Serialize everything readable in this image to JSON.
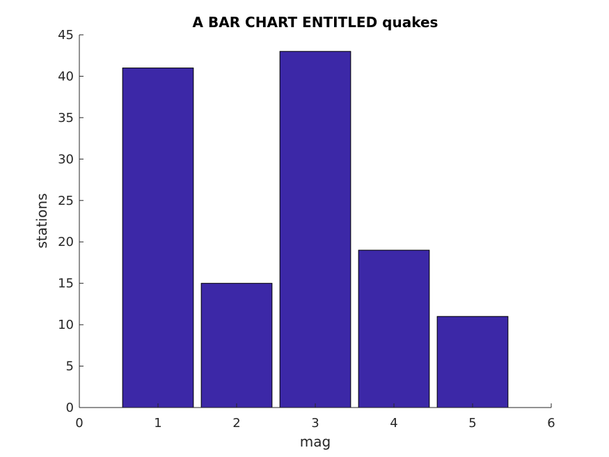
{
  "chart_data": {
    "type": "bar",
    "title": "A BAR CHART ENTITLED quakes",
    "xlabel": "mag",
    "ylabel": "stations",
    "categories": [
      1,
      2,
      3,
      4,
      5
    ],
    "values": [
      41,
      15,
      43,
      19,
      11
    ],
    "xlim": [
      0,
      6
    ],
    "ylim": [
      0,
      45
    ],
    "xticks": [
      0,
      1,
      2,
      3,
      4,
      5,
      6
    ],
    "yticks": [
      0,
      5,
      10,
      15,
      20,
      25,
      30,
      35,
      40,
      45
    ],
    "bar_color": "#3C28A7",
    "grid": false,
    "legend": false
  }
}
